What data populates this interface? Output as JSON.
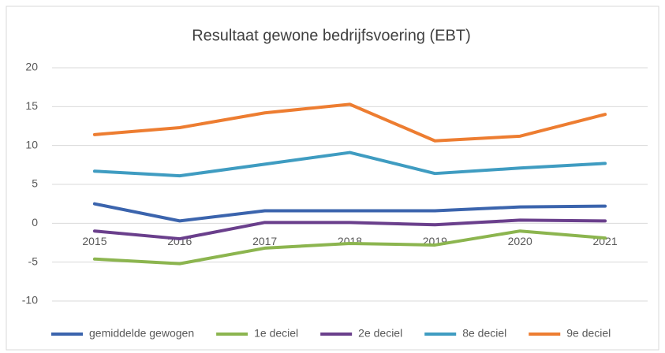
{
  "chart_data": {
    "type": "line",
    "title": "Resultaat gewone bedrijfsvoering (EBT)",
    "categories": [
      "2015",
      "2016",
      "2017",
      "2018",
      "2019",
      "2020",
      "2021"
    ],
    "series": [
      {
        "name": "gemiddelde gewogen",
        "color": "#3b64ad",
        "values": [
          2.5,
          0.3,
          1.6,
          1.6,
          1.6,
          2.1,
          2.2
        ]
      },
      {
        "name": "1e deciel",
        "color": "#8cb54f",
        "values": [
          -4.6,
          -5.2,
          -3.2,
          -2.6,
          -2.8,
          -1.0,
          -1.9
        ]
      },
      {
        "name": "2e deciel",
        "color": "#6a3f8c",
        "values": [
          -1.0,
          -2.0,
          0.1,
          0.1,
          -0.2,
          0.4,
          0.3
        ]
      },
      {
        "name": "8e deciel",
        "color": "#3f9cc1",
        "values": [
          6.7,
          6.1,
          7.6,
          9.1,
          6.4,
          7.1,
          7.7
        ]
      },
      {
        "name": "9e deciel",
        "color": "#ed7d31",
        "values": [
          11.4,
          12.3,
          14.2,
          15.3,
          10.6,
          11.2,
          14.0
        ]
      }
    ],
    "ylim": [
      -10,
      20
    ],
    "yticks": [
      -10,
      -5,
      0,
      5,
      10,
      15,
      20
    ],
    "grid": true,
    "legend": "bottom"
  }
}
